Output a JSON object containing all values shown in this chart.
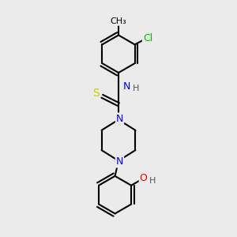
{
  "bg_color": "#ebebeb",
  "bond_color": "#000000",
  "bond_width": 1.5,
  "atom_colors": {
    "N": "#0000ee",
    "S": "#cccc00",
    "Cl": "#00bb00",
    "O": "#ee0000",
    "H": "#555555",
    "C": "#000000"
  },
  "font_size": 9,
  "fig_size": [
    3.0,
    3.0
  ],
  "dpi": 100,
  "xlim": [
    0,
    10
  ],
  "ylim": [
    0,
    10
  ]
}
